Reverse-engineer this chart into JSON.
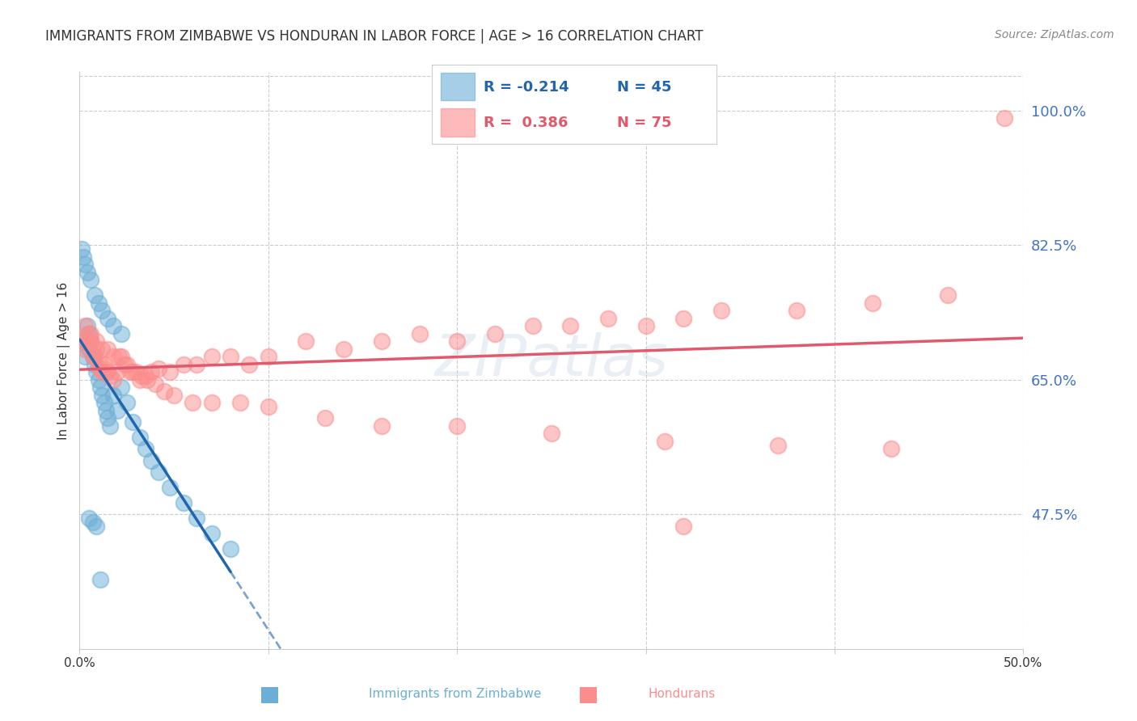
{
  "title": "IMMIGRANTS FROM ZIMBABWE VS HONDURAN IN LABOR FORCE | AGE > 16 CORRELATION CHART",
  "source": "Source: ZipAtlas.com",
  "ylabel_left": "In Labor Force | Age > 16",
  "x_min": 0.0,
  "x_max": 0.5,
  "y_min": 0.3,
  "y_max": 1.05,
  "y_ticks_right": [
    0.475,
    0.65,
    0.825,
    1.0
  ],
  "y_tick_labels_right": [
    "47.5%",
    "65.0%",
    "82.5%",
    "100.0%"
  ],
  "legend_r_zimbabwe": "-0.214",
  "legend_n_zimbabwe": "45",
  "legend_r_honduran": "0.386",
  "legend_n_honduran": "75",
  "zimbabwe_color": "#6baed6",
  "honduran_color": "#fc8d8d",
  "line_zimbabwe_color": "#2166ac",
  "line_honduran_color": "#e05a6e",
  "background_color": "#ffffff",
  "watermark": "ZIPatlas",
  "zimbabwe_x": [
    0.002,
    0.003,
    0.004,
    0.005,
    0.005,
    0.006,
    0.007,
    0.008,
    0.009,
    0.01,
    0.011,
    0.012,
    0.013,
    0.014,
    0.015,
    0.016,
    0.018,
    0.02,
    0.022,
    0.025,
    0.028,
    0.032,
    0.035,
    0.038,
    0.042,
    0.048,
    0.055,
    0.062,
    0.07,
    0.08,
    0.001,
    0.002,
    0.003,
    0.004,
    0.006,
    0.008,
    0.01,
    0.012,
    0.015,
    0.018,
    0.022,
    0.005,
    0.007,
    0.009,
    0.011
  ],
  "zimbabwe_y": [
    0.7,
    0.68,
    0.72,
    0.71,
    0.69,
    0.7,
    0.68,
    0.67,
    0.66,
    0.65,
    0.64,
    0.63,
    0.62,
    0.61,
    0.6,
    0.59,
    0.63,
    0.61,
    0.64,
    0.62,
    0.595,
    0.575,
    0.56,
    0.545,
    0.53,
    0.51,
    0.49,
    0.47,
    0.45,
    0.43,
    0.82,
    0.81,
    0.8,
    0.79,
    0.78,
    0.76,
    0.75,
    0.74,
    0.73,
    0.72,
    0.71,
    0.47,
    0.465,
    0.46,
    0.39
  ],
  "honduran_x": [
    0.002,
    0.003,
    0.004,
    0.005,
    0.005,
    0.006,
    0.007,
    0.008,
    0.009,
    0.01,
    0.011,
    0.012,
    0.013,
    0.014,
    0.015,
    0.016,
    0.018,
    0.02,
    0.022,
    0.025,
    0.028,
    0.032,
    0.035,
    0.038,
    0.042,
    0.048,
    0.055,
    0.062,
    0.07,
    0.08,
    0.09,
    0.1,
    0.12,
    0.14,
    0.16,
    0.18,
    0.2,
    0.22,
    0.24,
    0.26,
    0.28,
    0.3,
    0.32,
    0.34,
    0.38,
    0.42,
    0.46,
    0.003,
    0.006,
    0.009,
    0.012,
    0.015,
    0.018,
    0.021,
    0.024,
    0.027,
    0.03,
    0.033,
    0.036,
    0.04,
    0.045,
    0.05,
    0.06,
    0.07,
    0.085,
    0.1,
    0.13,
    0.16,
    0.2,
    0.25,
    0.31,
    0.37,
    0.43,
    0.49,
    0.32
  ],
  "honduran_y": [
    0.7,
    0.69,
    0.71,
    0.7,
    0.695,
    0.7,
    0.68,
    0.68,
    0.69,
    0.67,
    0.665,
    0.66,
    0.67,
    0.66,
    0.66,
    0.655,
    0.65,
    0.66,
    0.68,
    0.67,
    0.66,
    0.65,
    0.655,
    0.66,
    0.665,
    0.66,
    0.67,
    0.67,
    0.68,
    0.68,
    0.67,
    0.68,
    0.7,
    0.69,
    0.7,
    0.71,
    0.7,
    0.71,
    0.72,
    0.72,
    0.73,
    0.72,
    0.73,
    0.74,
    0.74,
    0.75,
    0.76,
    0.72,
    0.71,
    0.7,
    0.69,
    0.69,
    0.68,
    0.68,
    0.67,
    0.66,
    0.66,
    0.655,
    0.65,
    0.645,
    0.635,
    0.63,
    0.62,
    0.62,
    0.62,
    0.615,
    0.6,
    0.59,
    0.59,
    0.58,
    0.57,
    0.565,
    0.56,
    0.99,
    0.46
  ]
}
